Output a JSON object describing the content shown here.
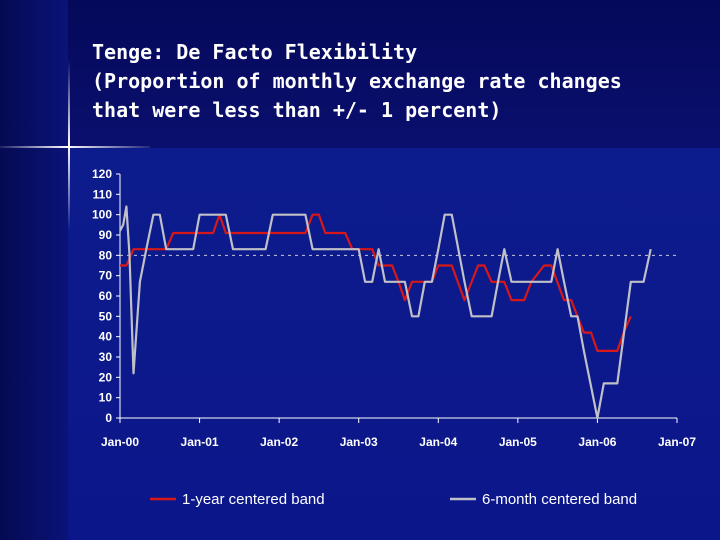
{
  "title_lines": [
    "Tenge: De Facto Flexibility",
    "(Proportion of monthly exchange rate changes",
    "that were less than +/- 1 percent)"
  ],
  "chart_data": {
    "type": "line",
    "title": "Tenge: De Facto Flexibility (Proportion of monthly exchange rate changes that were less than +/- 1 percent)",
    "xlabel": "",
    "ylabel": "",
    "ylim": [
      0,
      120
    ],
    "yticks": [
      0,
      10,
      20,
      30,
      40,
      50,
      60,
      70,
      80,
      90,
      100,
      110,
      120
    ],
    "xlim": [
      2000,
      2007
    ],
    "xticks": [
      {
        "x": 2000,
        "label": "Jan-00"
      },
      {
        "x": 2001,
        "label": "Jan-01"
      },
      {
        "x": 2002,
        "label": "Jan-02"
      },
      {
        "x": 2003,
        "label": "Jan-03"
      },
      {
        "x": 2004,
        "label": "Jan-04"
      },
      {
        "x": 2005,
        "label": "Jan-05"
      },
      {
        "x": 2006,
        "label": "Jan-06"
      },
      {
        "x": 2007,
        "label": "Jan-07"
      }
    ],
    "grid": false,
    "reference_line": {
      "y": 80,
      "style": "dashed"
    },
    "legend_position": "bottom",
    "series": [
      {
        "name": "1-year centered band",
        "color": "#d81818",
        "points": [
          [
            2000.0,
            75
          ],
          [
            2000.08,
            75
          ],
          [
            2000.17,
            83
          ],
          [
            2000.58,
            83
          ],
          [
            2000.67,
            91
          ],
          [
            2001.17,
            91
          ],
          [
            2001.25,
            100
          ],
          [
            2001.33,
            91
          ],
          [
            2001.92,
            91
          ],
          [
            2002.0,
            91
          ],
          [
            2002.33,
            91
          ],
          [
            2002.42,
            100
          ],
          [
            2002.5,
            100
          ],
          [
            2002.58,
            91
          ],
          [
            2002.83,
            91
          ],
          [
            2002.92,
            83
          ],
          [
            2003.17,
            83
          ],
          [
            2003.25,
            75
          ],
          [
            2003.42,
            75
          ],
          [
            2003.5,
            67
          ],
          [
            2003.58,
            58
          ],
          [
            2003.67,
            67
          ],
          [
            2003.92,
            67
          ],
          [
            2004.0,
            75
          ],
          [
            2004.17,
            75
          ],
          [
            2004.33,
            58
          ],
          [
            2004.5,
            75
          ],
          [
            2004.58,
            75
          ],
          [
            2004.67,
            67
          ],
          [
            2004.83,
            67
          ],
          [
            2004.92,
            58
          ],
          [
            2005.08,
            58
          ],
          [
            2005.17,
            67
          ],
          [
            2005.33,
            75
          ],
          [
            2005.42,
            75
          ],
          [
            2005.58,
            58
          ],
          [
            2005.67,
            58
          ],
          [
            2005.75,
            50
          ],
          [
            2005.83,
            42
          ],
          [
            2005.92,
            42
          ],
          [
            2006.0,
            33
          ],
          [
            2006.08,
            33
          ],
          [
            2006.25,
            33
          ],
          [
            2006.33,
            42
          ],
          [
            2006.42,
            50
          ]
        ]
      },
      {
        "name": "6-month centered band",
        "color": "#c0c0c8",
        "points": [
          [
            2000.0,
            92
          ],
          [
            2000.04,
            95
          ],
          [
            2000.08,
            104
          ],
          [
            2000.12,
            80
          ],
          [
            2000.17,
            22
          ],
          [
            2000.25,
            67
          ],
          [
            2000.33,
            83
          ],
          [
            2000.42,
            100
          ],
          [
            2000.5,
            100
          ],
          [
            2000.58,
            83
          ],
          [
            2000.92,
            83
          ],
          [
            2001.0,
            100
          ],
          [
            2001.33,
            100
          ],
          [
            2001.42,
            83
          ],
          [
            2001.83,
            83
          ],
          [
            2001.92,
            100
          ],
          [
            2002.33,
            100
          ],
          [
            2002.42,
            83
          ],
          [
            2002.92,
            83
          ],
          [
            2003.0,
            83
          ],
          [
            2003.08,
            67
          ],
          [
            2003.17,
            67
          ],
          [
            2003.25,
            83
          ],
          [
            2003.33,
            67
          ],
          [
            2003.58,
            67
          ],
          [
            2003.67,
            50
          ],
          [
            2003.75,
            50
          ],
          [
            2003.83,
            67
          ],
          [
            2003.92,
            67
          ],
          [
            2004.0,
            83
          ],
          [
            2004.08,
            100
          ],
          [
            2004.17,
            100
          ],
          [
            2004.33,
            67
          ],
          [
            2004.42,
            50
          ],
          [
            2004.67,
            50
          ],
          [
            2004.75,
            67
          ],
          [
            2004.83,
            83
          ],
          [
            2004.92,
            67
          ],
          [
            2005.33,
            67
          ],
          [
            2005.42,
            67
          ],
          [
            2005.5,
            83
          ],
          [
            2005.58,
            67
          ],
          [
            2005.67,
            50
          ],
          [
            2005.75,
            50
          ],
          [
            2005.83,
            33
          ],
          [
            2006.0,
            0
          ],
          [
            2006.08,
            17
          ],
          [
            2006.25,
            17
          ],
          [
            2006.42,
            67
          ],
          [
            2006.58,
            67
          ],
          [
            2006.67,
            83
          ]
        ]
      }
    ]
  }
}
